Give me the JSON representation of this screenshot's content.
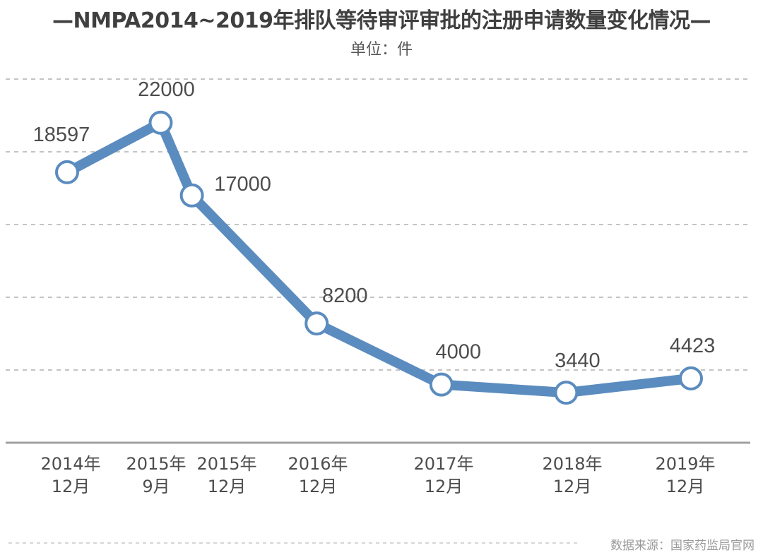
{
  "title": "—NMPA2014~2019年排队等待审评审批的注册申请数量变化情况—",
  "unit_label": "单位：件",
  "source": "数据来源：国家药监局官网",
  "colors": {
    "line": "#5b8cbf",
    "marker_stroke": "#5b8cbf",
    "marker_fill": "#ffffff",
    "grid": "#b0b0b0",
    "axis": "#a0a0a0",
    "label": "#4d4d4d",
    "tick": "#4d4d4d"
  },
  "chart_data": {
    "type": "line",
    "title": "—NMPA2014~2019年排队等待审评审批的注册申请数量变化情况—",
    "subtitle": "单位：件",
    "categories": [
      [
        "2014年",
        "12月"
      ],
      [
        "2015年",
        "9月"
      ],
      [
        "2015年",
        "12月"
      ],
      [
        "2016年",
        "12月"
      ],
      [
        "2017年",
        "12月"
      ],
      [
        "2018年",
        "12月"
      ],
      [
        "2019年",
        "12月"
      ]
    ],
    "x_dates": [
      "2014-12",
      "2015-09",
      "2015-12",
      "2016-12",
      "2017-12",
      "2018-12",
      "2019-12"
    ],
    "series": [
      {
        "values": [
          18597,
          22000,
          17000,
          8200,
          4000,
          3440,
          4423
        ]
      }
    ],
    "data_labels": [
      "18597",
      "22000",
      "17000",
      "8200",
      "4000",
      "3440",
      "4423"
    ],
    "ylim": [
      0,
      25000
    ],
    "y_grid_step": 5000,
    "grid": true,
    "grid_style": "dashed-horizontal",
    "legend": "none",
    "xlabel": "",
    "ylabel": ""
  }
}
